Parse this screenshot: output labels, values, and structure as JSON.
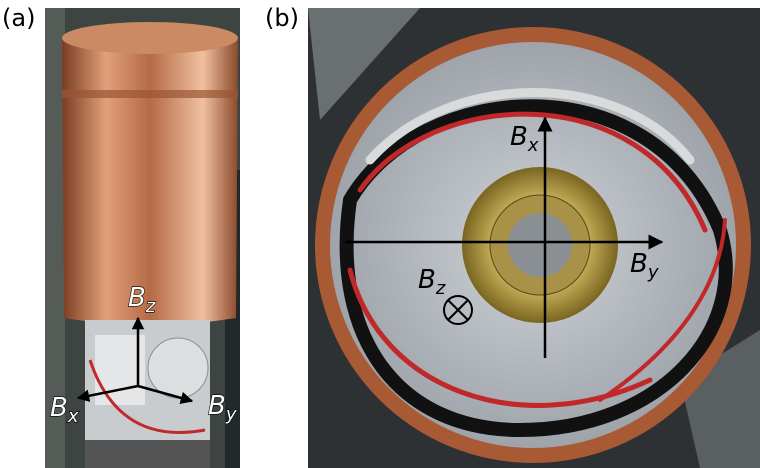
{
  "panels": [
    {
      "label": "(a)",
      "axes": [
        {
          "letter": "B",
          "sub": "z"
        },
        {
          "letter": "B",
          "sub": "x"
        },
        {
          "letter": "B",
          "sub": "y"
        }
      ]
    },
    {
      "label": "(b)",
      "axes": [
        {
          "letter": "B",
          "sub": "x"
        },
        {
          "letter": "B",
          "sub": "y"
        },
        {
          "letter": "B",
          "sub": "z"
        }
      ]
    }
  ]
}
